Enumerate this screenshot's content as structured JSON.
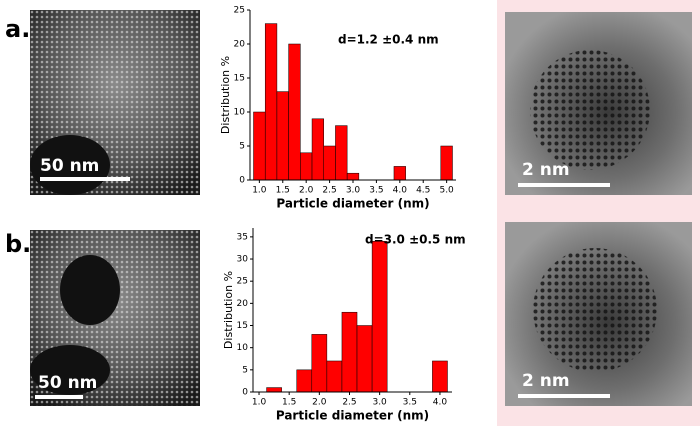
{
  "figure": {
    "panels": [
      {
        "label": "a.",
        "sem_scale": "50 nm",
        "tem_scale": "2 nm"
      },
      {
        "label": "b.",
        "sem_scale": "50 nm",
        "tem_scale": "2 nm"
      }
    ]
  },
  "chart_data": [
    {
      "type": "histogram",
      "annotation": "d=1.2 ±0.4 nm",
      "xlabel": "Particle diameter (nm)",
      "ylabel": "Distribution %",
      "color": "#ff0000",
      "bins": [
        0.875,
        1.125,
        1.375,
        1.625,
        1.875,
        2.125,
        2.375,
        2.625,
        2.875,
        3.125,
        3.375,
        3.625,
        3.875,
        4.125,
        4.375,
        4.625,
        4.875,
        5.125
      ],
      "values": [
        10,
        23,
        13,
        20,
        4,
        9,
        5,
        8,
        1,
        0,
        0,
        0,
        2,
        0,
        0,
        0,
        5
      ],
      "xlim": [
        0.8,
        5.2
      ],
      "ylim": [
        0,
        25
      ],
      "xticks": [
        {
          "value": 1,
          "label": "1.0"
        },
        1.5,
        {
          "value": 2,
          "label": "2.0"
        },
        2.5,
        {
          "value": 3,
          "label": "3.0"
        },
        3.5,
        {
          "value": 4,
          "label": "4.0"
        },
        4.5,
        {
          "value": 5,
          "label": "5.0"
        }
      ],
      "yticks": [
        0,
        5,
        10,
        15,
        20,
        25
      ]
    },
    {
      "type": "histogram",
      "annotation": "d=3.0 ±0.5 nm",
      "xlabel": "Particle diameter (nm)",
      "ylabel": "Distribution %",
      "color": "#ff0000",
      "bins": [
        1.125,
        1.375,
        1.625,
        1.875,
        2.125,
        2.375,
        2.625,
        2.875,
        3.125,
        3.375,
        3.625,
        3.875,
        4.125
      ],
      "values": [
        1,
        0,
        5,
        13,
        7,
        18,
        15,
        34,
        0,
        0,
        0,
        7
      ],
      "xlim": [
        0.9,
        4.2
      ],
      "ylim": [
        0,
        37
      ],
      "xticks": [
        {
          "value": 1,
          "label": "1.0"
        },
        1.5,
        {
          "value": 2,
          "label": "2.0"
        },
        2.5,
        {
          "value": 3,
          "label": "3.0"
        },
        3.5,
        {
          "value": 4,
          "label": "4.0"
        }
      ],
      "yticks": [
        0,
        5,
        10,
        15,
        20,
        25,
        30,
        35
      ]
    }
  ]
}
